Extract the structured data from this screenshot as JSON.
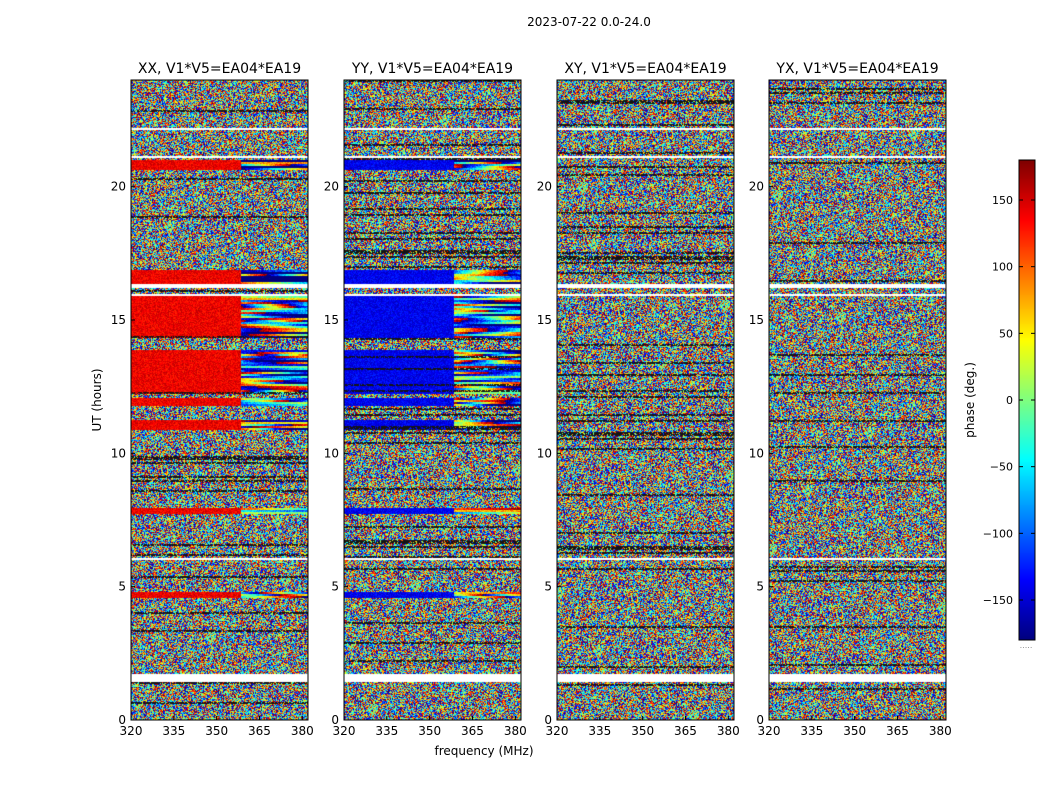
{
  "figure": {
    "suptitle": "2023-07-22 0.0-24.0"
  },
  "chart_data": {
    "type": "heatmap",
    "xlabel": "frequency (MHz)",
    "ylabel": "UT (hours)",
    "xlim": [
      320,
      382
    ],
    "ylim": [
      0,
      24
    ],
    "xticks": [
      320,
      335,
      350,
      365,
      380
    ],
    "yticks": [
      0,
      5,
      10,
      15,
      20
    ],
    "colorbar": {
      "label": "phase (deg.)",
      "range": [
        -180,
        180
      ],
      "ticks": [
        150,
        100,
        50,
        0,
        -50,
        -100,
        -150
      ],
      "tick_labels": [
        "150",
        "100",
        "50",
        "0",
        "−50",
        "−100",
        "−150"
      ],
      "colormap": [
        "#00007f",
        "#0000ff",
        "#007fff",
        "#00ffff",
        "#7fff7f",
        "#ffff00",
        "#ff7f00",
        "#ff0000",
        "#7f0000"
      ],
      "footnote": "....."
    },
    "panels": [
      {
        "title": "XX, V1*V5=EA04*EA19",
        "feature_phase": 140
      },
      {
        "title": "YY, V1*V5=EA04*EA19",
        "feature_phase": -140
      },
      {
        "title": "XY, V1*V5=EA04*EA19",
        "feature_phase": null
      },
      {
        "title": "YX, V1*V5=EA04*EA19",
        "feature_phase": null
      }
    ],
    "blank_ut_bands": [
      [
        1.45,
        1.55
      ],
      [
        1.6,
        1.75
      ],
      [
        6.0,
        6.1
      ],
      [
        16.2,
        16.35
      ],
      [
        15.9,
        16.0
      ],
      [
        21.05,
        21.15
      ],
      [
        22.1,
        22.2
      ]
    ],
    "coherent_ut_bands": [
      [
        4.6,
        4.8
      ],
      [
        7.75,
        7.95
      ],
      [
        10.85,
        11.25
      ],
      [
        11.8,
        12.1
      ],
      [
        12.2,
        13.9
      ],
      [
        14.3,
        15.9
      ],
      [
        16.35,
        16.9
      ],
      [
        20.6,
        21.0
      ]
    ]
  }
}
